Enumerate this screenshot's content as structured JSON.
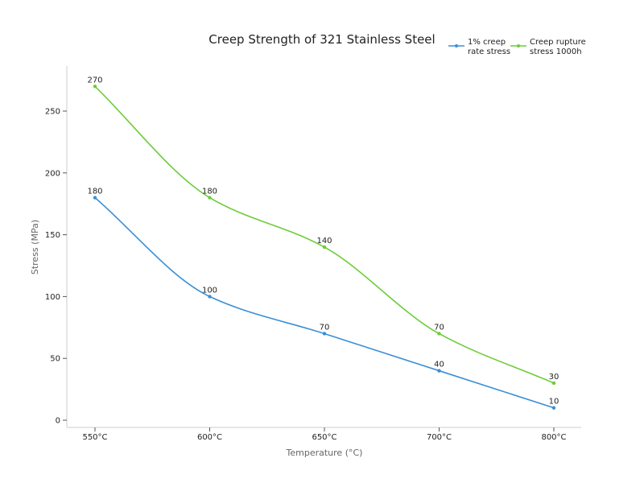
{
  "chart_data": {
    "type": "line",
    "title": "Creep Strength of 321 Stainless Steel",
    "xlabel": "Temperature (°C)",
    "ylabel": "Stress (MPa)",
    "categories": [
      "550°C",
      "600°C",
      "650°C",
      "700°C",
      "800°C"
    ],
    "ylim": [
      0,
      280
    ],
    "yticks": [
      0,
      50,
      100,
      150,
      200,
      250
    ],
    "grid": false,
    "legend": "top-right",
    "series": [
      {
        "name": "1% creep rate stress",
        "legend_lines": [
          "1% creep",
          "rate stress"
        ],
        "color": "#3a8fd6",
        "values": [
          180,
          100,
          70,
          40,
          10
        ]
      },
      {
        "name": "Creep rupture stress 1000h",
        "legend_lines": [
          "Creep rupture",
          "stress 1000h"
        ],
        "color": "#6ccc3a",
        "values": [
          270,
          180,
          140,
          70,
          30
        ]
      }
    ]
  }
}
